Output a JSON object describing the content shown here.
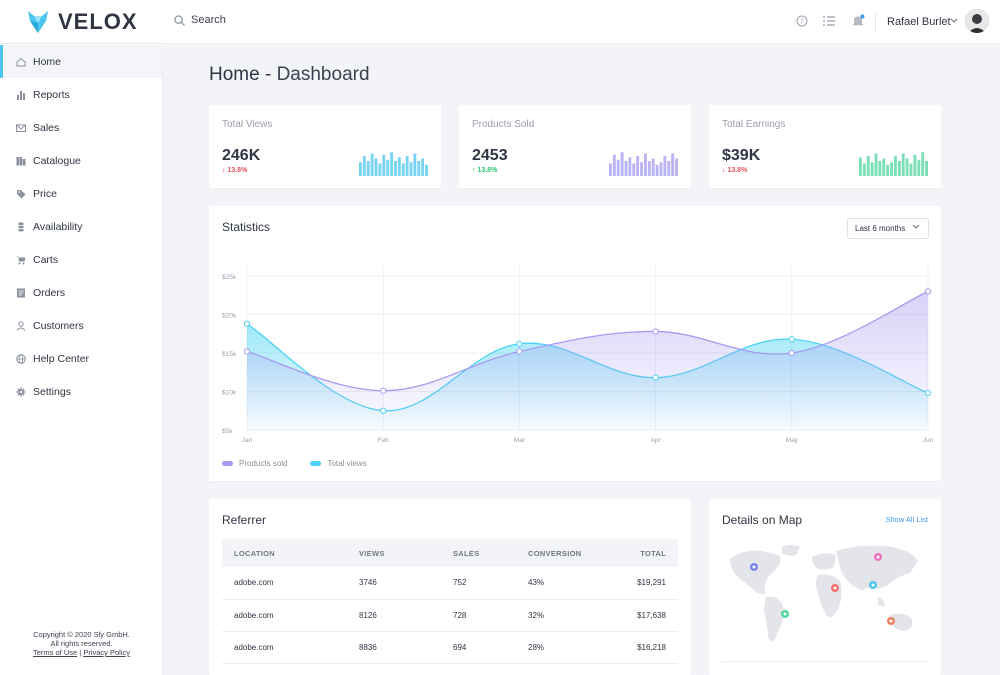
{
  "brand": {
    "name": "VELOX",
    "accent": "#4cc5f0"
  },
  "search": {
    "placeholder": "Search"
  },
  "user": {
    "name": "Rafael Burlet"
  },
  "sidebar": {
    "items": [
      {
        "label": "Home",
        "icon": "home-icon"
      },
      {
        "label": "Reports",
        "icon": "bar-chart-icon"
      },
      {
        "label": "Sales",
        "icon": "mail-icon"
      },
      {
        "label": "Catalogue",
        "icon": "catalogue-icon"
      },
      {
        "label": "Price",
        "icon": "tag-icon"
      },
      {
        "label": "Availability",
        "icon": "box-icon"
      },
      {
        "label": "Carts",
        "icon": "cart-icon"
      },
      {
        "label": "Orders",
        "icon": "orders-icon"
      },
      {
        "label": "Customers",
        "icon": "user-icon"
      },
      {
        "label": "Help Center",
        "icon": "globe-icon"
      },
      {
        "label": "Settings",
        "icon": "gear-icon"
      }
    ],
    "footer": {
      "copyright": "Copyright © 2020 Sly GmbH.",
      "rights": "All rights reserved.",
      "terms": "Terms of Use",
      "separator": "|",
      "privacy": "Privacy Policy"
    }
  },
  "page": {
    "title": "Home -",
    "subtitle": "Dashboard"
  },
  "stats": [
    {
      "label": "Total Views",
      "value": "246K",
      "change": "13.8%",
      "direction": "down",
      "color": "#4cc5f0"
    },
    {
      "label": "Products Sold",
      "value": "2453",
      "change": "13.8%",
      "direction": "up",
      "color": "#a49bf0"
    },
    {
      "label": "Total Earnings",
      "value": "$39K",
      "change": "13.8%",
      "direction": "down",
      "color": "#4fd69c"
    }
  ],
  "statistics": {
    "title": "Statistics",
    "range": "Last 6 months"
  },
  "chart_data": {
    "type": "line",
    "categories": [
      "Jan",
      "Feb",
      "Mar",
      "Apr",
      "May",
      "Jun"
    ],
    "ylim": [
      5000,
      25000
    ],
    "yticks": [
      "$5k",
      "$10k",
      "$15k",
      "$20k",
      "$25k"
    ],
    "grid": true,
    "legend": "bottom-left",
    "series": [
      {
        "name": "Products sold",
        "color": "#a49bf0",
        "values": [
          15200,
          10100,
          15200,
          17800,
          15000,
          23000
        ]
      },
      {
        "name": "Total views",
        "color": "#4cd3f3",
        "values": [
          18800,
          7500,
          16200,
          11800,
          16800,
          9800
        ]
      }
    ]
  },
  "referrer": {
    "title": "Referrer",
    "columns": [
      "LOCATION",
      "VIEWS",
      "SALES",
      "CONVERSION",
      "TOTAL"
    ],
    "rows": [
      [
        "adobe.com",
        "3746",
        "752",
        "43%",
        "$19,291"
      ],
      [
        "adobe.com",
        "8126",
        "728",
        "32%",
        "$17,638"
      ],
      [
        "adobe.com",
        "8836",
        "694",
        "28%",
        "$16,218"
      ]
    ]
  },
  "map": {
    "title": "Details on Map",
    "link": "Show All List"
  }
}
